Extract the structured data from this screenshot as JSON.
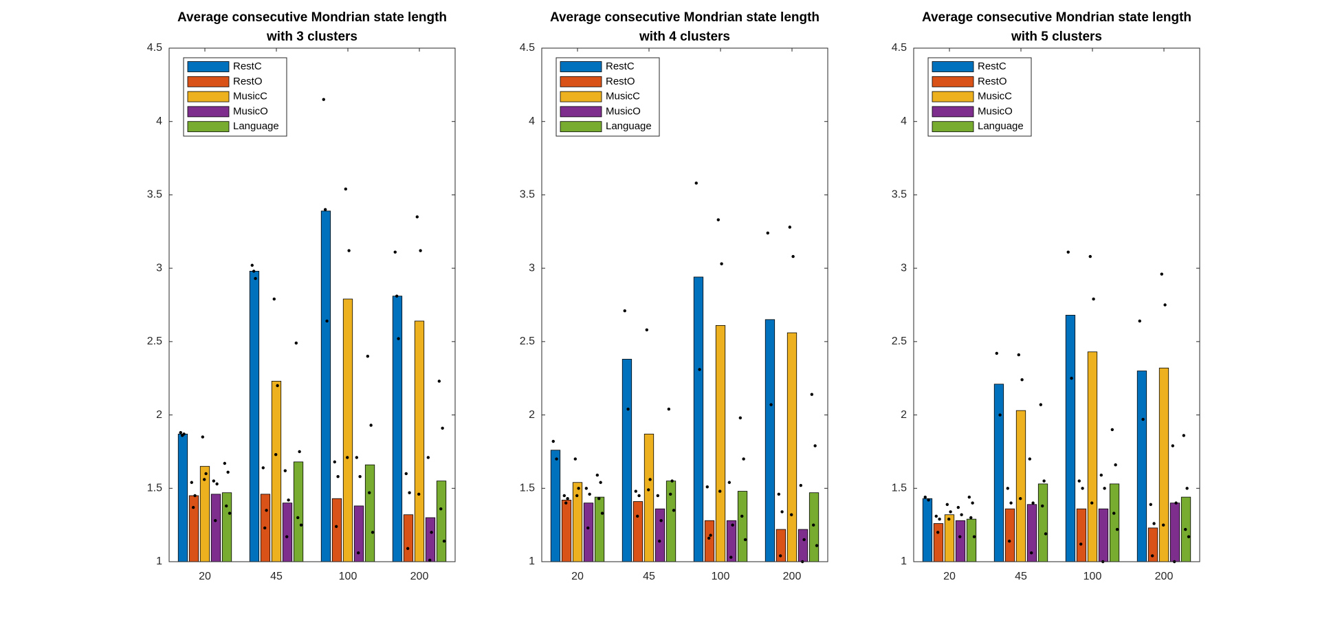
{
  "chart_data": [
    {
      "type": "bar",
      "title": [
        "Average consecutive Mondrian state length",
        "with 3 clusters"
      ],
      "categories": [
        "20",
        "45",
        "100",
        "200"
      ],
      "ylim": [
        1,
        4.5
      ],
      "yticks": [
        1,
        1.5,
        2,
        2.5,
        3,
        3.5,
        4,
        4.5
      ],
      "legend": "upper-left",
      "series": [
        {
          "name": "RestC",
          "color": "#0072bd",
          "values": [
            1.87,
            2.98,
            3.39,
            2.81
          ],
          "points": [
            [
              1.88,
              1.87,
              1.86
            ],
            [
              3.02,
              2.93,
              2.98
            ],
            [
              4.15,
              2.64,
              3.4
            ],
            [
              3.11,
              2.52,
              2.81
            ]
          ]
        },
        {
          "name": "RestO",
          "color": "#d95319",
          "values": [
            1.45,
            1.46,
            1.43,
            1.32
          ],
          "points": [
            [
              1.54,
              1.45,
              1.37
            ],
            [
              1.64,
              1.35,
              1.23
            ],
            [
              1.68,
              1.58,
              1.24
            ],
            [
              1.6,
              1.47,
              1.09
            ]
          ]
        },
        {
          "name": "MusicC",
          "color": "#edb120",
          "values": [
            1.65,
            2.23,
            2.79,
            2.64
          ],
          "points": [
            [
              1.85,
              1.6,
              1.56
            ],
            [
              2.79,
              2.2,
              1.73
            ],
            [
              3.54,
              3.12,
              1.71
            ],
            [
              3.35,
              3.12,
              1.46
            ]
          ]
        },
        {
          "name": "MusicO",
          "color": "#7e2f8e",
          "values": [
            1.46,
            1.4,
            1.38,
            1.3
          ],
          "points": [
            [
              1.55,
              1.53,
              1.28
            ],
            [
              1.62,
              1.42,
              1.17
            ],
            [
              1.71,
              1.58,
              1.06
            ],
            [
              1.71,
              1.2,
              1.01
            ]
          ]
        },
        {
          "name": "Language",
          "color": "#77ac30",
          "values": [
            1.47,
            1.68,
            1.66,
            1.55
          ],
          "points": [
            [
              1.67,
              1.61,
              1.38,
              1.33
            ],
            [
              2.49,
              1.75,
              1.3,
              1.25
            ],
            [
              2.4,
              1.93,
              1.47,
              1.2
            ],
            [
              2.23,
              1.91,
              1.36,
              1.14
            ]
          ]
        }
      ]
    },
    {
      "type": "bar",
      "title": [
        "Average consecutive Mondrian state length",
        "with 4 clusters"
      ],
      "categories": [
        "20",
        "45",
        "100",
        "200"
      ],
      "ylim": [
        1,
        4.5
      ],
      "yticks": [
        1,
        1.5,
        2,
        2.5,
        3,
        3.5,
        4,
        4.5
      ],
      "legend": "upper-left",
      "series": [
        {
          "name": "RestC",
          "color": "#0072bd",
          "values": [
            1.76,
            2.38,
            2.94,
            2.65
          ],
          "points": [
            [
              1.82,
              1.7
            ],
            [
              2.71,
              2.04
            ],
            [
              3.58,
              2.31
            ],
            [
              3.24,
              2.07
            ]
          ]
        },
        {
          "name": "RestO",
          "color": "#d95319",
          "values": [
            1.42,
            1.41,
            1.28,
            1.22
          ],
          "points": [
            [
              1.45,
              1.43,
              1.4
            ],
            [
              1.48,
              1.45,
              1.31
            ],
            [
              1.51,
              1.18,
              1.16
            ],
            [
              1.46,
              1.34,
              1.04
            ]
          ]
        },
        {
          "name": "MusicC",
          "color": "#edb120",
          "values": [
            1.54,
            1.87,
            2.61,
            2.56
          ],
          "points": [
            [
              1.7,
              1.5,
              1.45
            ],
            [
              2.58,
              1.56,
              1.49
            ],
            [
              3.33,
              3.03,
              1.48
            ],
            [
              3.28,
              3.08,
              1.32
            ]
          ]
        },
        {
          "name": "MusicO",
          "color": "#7e2f8e",
          "values": [
            1.4,
            1.36,
            1.28,
            1.22
          ],
          "points": [
            [
              1.5,
              1.46,
              1.23
            ],
            [
              1.45,
              1.28,
              1.14
            ],
            [
              1.54,
              1.25,
              1.03
            ],
            [
              1.52,
              1.15,
              1.0
            ]
          ]
        },
        {
          "name": "Language",
          "color": "#77ac30",
          "values": [
            1.44,
            1.55,
            1.48,
            1.47
          ],
          "points": [
            [
              1.59,
              1.54,
              1.43,
              1.33
            ],
            [
              2.04,
              1.55,
              1.46,
              1.35
            ],
            [
              1.98,
              1.7,
              1.31,
              1.15
            ],
            [
              2.14,
              1.79,
              1.25,
              1.11
            ]
          ]
        }
      ]
    },
    {
      "type": "bar",
      "title": [
        "Average consecutive Mondrian state length",
        "with 5 clusters"
      ],
      "categories": [
        "20",
        "45",
        "100",
        "200"
      ],
      "ylim": [
        1,
        4.5
      ],
      "yticks": [
        1,
        1.5,
        2,
        2.5,
        3,
        3.5,
        4,
        4.5
      ],
      "legend": "upper-left",
      "series": [
        {
          "name": "RestC",
          "color": "#0072bd",
          "values": [
            1.43,
            2.21,
            2.68,
            2.3
          ],
          "points": [
            [
              1.44,
              1.42
            ],
            [
              2.42,
              2.0
            ],
            [
              3.11,
              2.25
            ],
            [
              2.64,
              1.97
            ]
          ]
        },
        {
          "name": "RestO",
          "color": "#d95319",
          "values": [
            1.26,
            1.36,
            1.36,
            1.23
          ],
          "points": [
            [
              1.31,
              1.29,
              1.2
            ],
            [
              1.5,
              1.4,
              1.14
            ],
            [
              1.55,
              1.5,
              1.12
            ],
            [
              1.39,
              1.26,
              1.04
            ]
          ]
        },
        {
          "name": "MusicC",
          "color": "#edb120",
          "values": [
            1.32,
            2.03,
            2.43,
            2.32
          ],
          "points": [
            [
              1.39,
              1.34,
              1.29
            ],
            [
              2.41,
              2.24,
              1.43
            ],
            [
              3.08,
              2.79,
              1.4
            ],
            [
              2.96,
              2.75,
              1.25
            ]
          ]
        },
        {
          "name": "MusicO",
          "color": "#7e2f8e",
          "values": [
            1.28,
            1.39,
            1.36,
            1.4
          ],
          "points": [
            [
              1.37,
              1.32,
              1.17
            ],
            [
              1.7,
              1.4,
              1.06
            ],
            [
              1.59,
              1.5,
              1.0
            ],
            [
              1.79,
              1.4,
              1.0
            ]
          ]
        },
        {
          "name": "Language",
          "color": "#77ac30",
          "values": [
            1.29,
            1.53,
            1.53,
            1.44
          ],
          "points": [
            [
              1.44,
              1.4,
              1.3,
              1.17
            ],
            [
              2.07,
              1.55,
              1.38,
              1.19
            ],
            [
              1.9,
              1.66,
              1.33,
              1.22
            ],
            [
              1.86,
              1.5,
              1.22,
              1.17
            ]
          ]
        }
      ]
    }
  ]
}
